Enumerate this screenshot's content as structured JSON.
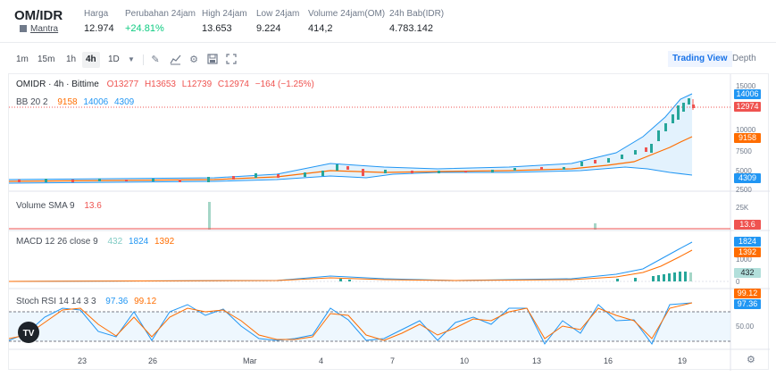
{
  "header": {
    "pair": "OM/IDR",
    "project": "Mantra",
    "stats": [
      {
        "label": "Harga",
        "value": "12.974",
        "positive": false
      },
      {
        "label": "Perubahan 24jam",
        "value": "+24.81%",
        "positive": true
      },
      {
        "label": "High 24jam",
        "value": "13.653",
        "positive": false
      },
      {
        "label": "Low 24jam",
        "value": "9.224",
        "positive": false
      },
      {
        "label": "Volume 24jam(OM)",
        "value": "414,2",
        "positive": false
      },
      {
        "label": "24h Bab(IDR)",
        "value": "4.783.142",
        "positive": false
      }
    ]
  },
  "toolbar": {
    "timeframes": [
      "1m",
      "15m",
      "1h",
      "4h",
      "1D"
    ],
    "active_timeframe": "4h",
    "icons": [
      "pencil-icon",
      "line-chart-icon",
      "settings-icon",
      "save-icon",
      "fullscreen-icon"
    ],
    "views": [
      "Trading View",
      "Depth"
    ],
    "active_view": "Trading View"
  },
  "main": {
    "title": "OMIDR · 4h · Bittime",
    "ohlc": {
      "o": "O13277",
      "h": "H13653",
      "l": "L12739",
      "c": "C12974",
      "change": "−164 (−1.25%)"
    },
    "bb": {
      "label": "BB 20 2",
      "mid": "9158",
      "upper": "14006",
      "lower": "4309"
    },
    "axis": [
      "15000",
      "10000",
      "7500",
      "5000",
      "2500"
    ],
    "badges": {
      "upper": "14006",
      "price": "12974",
      "mid": "9158",
      "lower": "4309"
    },
    "colors": {
      "up": "#26a69a",
      "down": "#ef5350",
      "bb_upper": "#2196f3",
      "bb_mid": "#ff6d00",
      "bb_fill": "#e3f2fd"
    }
  },
  "volume": {
    "label": "Volume SMA 9",
    "value": "13.6",
    "axis": "25K",
    "badge": "13.6"
  },
  "macd": {
    "label": "MACD 12 26 close 9",
    "hist": "432",
    "macd": "1824",
    "signal": "1392",
    "axis": [
      "2000",
      "1000",
      "0"
    ],
    "badges": {
      "macd": "1824",
      "signal": "1392",
      "hist": "432"
    }
  },
  "stoch": {
    "label": "Stoch RSI 14 14 3 3",
    "k": "97.36",
    "d": "99.12",
    "axis": "50.00",
    "badges": {
      "d": "99.12",
      "k": "97.36"
    }
  },
  "dates": [
    "23",
    "26",
    "Mar",
    "4",
    "7",
    "10",
    "13",
    "16",
    "19"
  ],
  "logo": "TV"
}
